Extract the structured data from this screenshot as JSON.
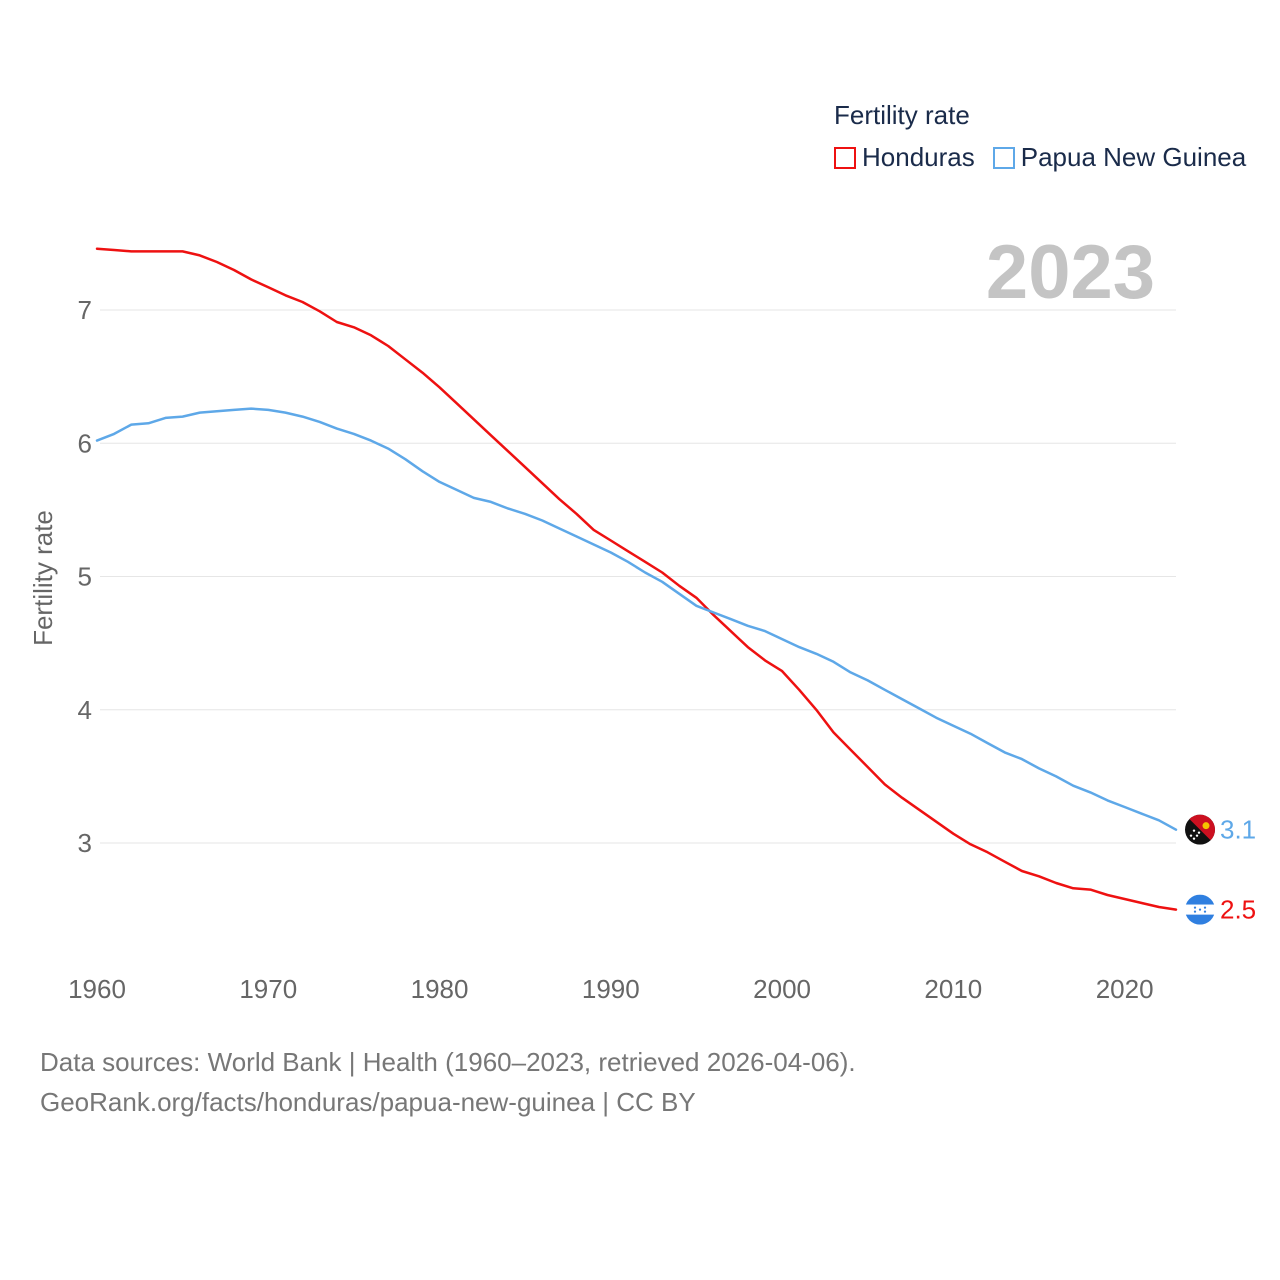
{
  "legend": {
    "title": "Fertility rate",
    "items": [
      {
        "label": "Honduras",
        "color": "#ee1111"
      },
      {
        "label": "Papua New Guinea",
        "color": "#5ea8e8"
      }
    ]
  },
  "footer": {
    "line1": "Data sources: World Bank | Health (1960–2023, retrieved 2026-04-06).",
    "line2": "GeoRank.org/facts/honduras/papua-new-guinea | CC BY"
  },
  "chart_data": {
    "type": "line",
    "title": "Fertility rate",
    "year_label": "2023",
    "xlabel": "",
    "ylabel": "Fertility rate",
    "xlim": [
      1960,
      2023
    ],
    "ylim": [
      2.2,
      7.6
    ],
    "x_ticks": [
      1960,
      1970,
      1980,
      1990,
      2000,
      2010,
      2020
    ],
    "y_ticks": [
      3,
      4,
      5,
      6,
      7
    ],
    "grid": true,
    "legend_position": "top-right",
    "x": [
      1960,
      1961,
      1962,
      1963,
      1964,
      1965,
      1966,
      1967,
      1968,
      1969,
      1970,
      1971,
      1972,
      1973,
      1974,
      1975,
      1976,
      1977,
      1978,
      1979,
      1980,
      1981,
      1982,
      1983,
      1984,
      1985,
      1986,
      1987,
      1988,
      1989,
      1990,
      1991,
      1992,
      1993,
      1994,
      1995,
      1996,
      1997,
      1998,
      1999,
      2000,
      2001,
      2002,
      2003,
      2004,
      2005,
      2006,
      2007,
      2008,
      2009,
      2010,
      2011,
      2012,
      2013,
      2014,
      2015,
      2016,
      2017,
      2018,
      2019,
      2020,
      2021,
      2022,
      2023
    ],
    "series": [
      {
        "name": "Honduras",
        "color": "#ee1111",
        "end_label": "2.5",
        "end_icon": "honduras-flag-icon",
        "values": [
          7.46,
          7.45,
          7.44,
          7.44,
          7.44,
          7.44,
          7.41,
          7.36,
          7.3,
          7.23,
          7.17,
          7.11,
          7.06,
          6.99,
          6.91,
          6.87,
          6.81,
          6.73,
          6.63,
          6.53,
          6.42,
          6.3,
          6.18,
          6.06,
          5.94,
          5.82,
          5.7,
          5.58,
          5.47,
          5.35,
          5.27,
          5.19,
          5.11,
          5.03,
          4.93,
          4.84,
          4.71,
          4.59,
          4.47,
          4.37,
          4.29,
          4.15,
          4.0,
          3.83,
          3.7,
          3.57,
          3.44,
          3.34,
          3.25,
          3.16,
          3.07,
          2.99,
          2.93,
          2.86,
          2.79,
          2.75,
          2.7,
          2.66,
          2.65,
          2.61,
          2.58,
          2.55,
          2.52,
          2.5
        ]
      },
      {
        "name": "Papua New Guinea",
        "color": "#5ea8e8",
        "end_label": "3.1",
        "end_icon": "papua-new-guinea-flag-icon",
        "values": [
          6.02,
          6.07,
          6.14,
          6.15,
          6.19,
          6.2,
          6.23,
          6.24,
          6.25,
          6.26,
          6.25,
          6.23,
          6.2,
          6.16,
          6.11,
          6.07,
          6.02,
          5.96,
          5.88,
          5.79,
          5.71,
          5.65,
          5.59,
          5.56,
          5.51,
          5.47,
          5.42,
          5.36,
          5.3,
          5.24,
          5.18,
          5.11,
          5.03,
          4.96,
          4.87,
          4.78,
          4.73,
          4.68,
          4.63,
          4.59,
          4.53,
          4.47,
          4.42,
          4.36,
          4.28,
          4.22,
          4.15,
          4.08,
          4.01,
          3.94,
          3.88,
          3.82,
          3.75,
          3.68,
          3.63,
          3.56,
          3.5,
          3.43,
          3.38,
          3.32,
          3.27,
          3.22,
          3.17,
          3.1
        ]
      }
    ]
  }
}
